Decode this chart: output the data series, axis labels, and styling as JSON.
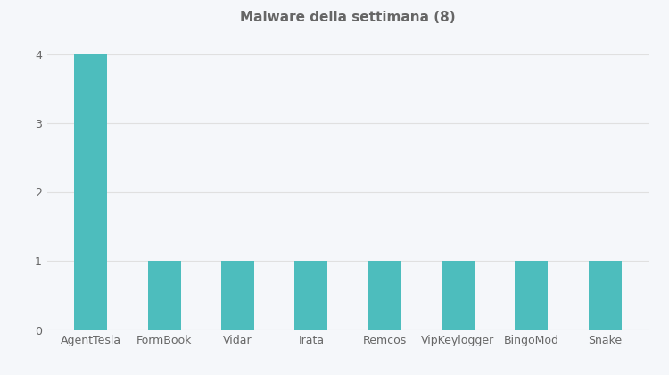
{
  "title": "Malware della settimana (8)",
  "categories": [
    "AgentTesla",
    "FormBook",
    "Vidar",
    "Irata",
    "Remcos",
    "VipKeylogger",
    "BingoMod",
    "Snake"
  ],
  "values": [
    4,
    1,
    1,
    1,
    1,
    1,
    1,
    1
  ],
  "bar_color": "#4DBDBD",
  "background_color": "#f5f7fa",
  "grid_color": "#e0e0e0",
  "text_color": "#666666",
  "ylim": [
    0,
    4.3
  ],
  "yticks": [
    0,
    1,
    2,
    3,
    4
  ],
  "title_fontsize": 11,
  "tick_fontsize": 9,
  "bar_width": 0.45
}
